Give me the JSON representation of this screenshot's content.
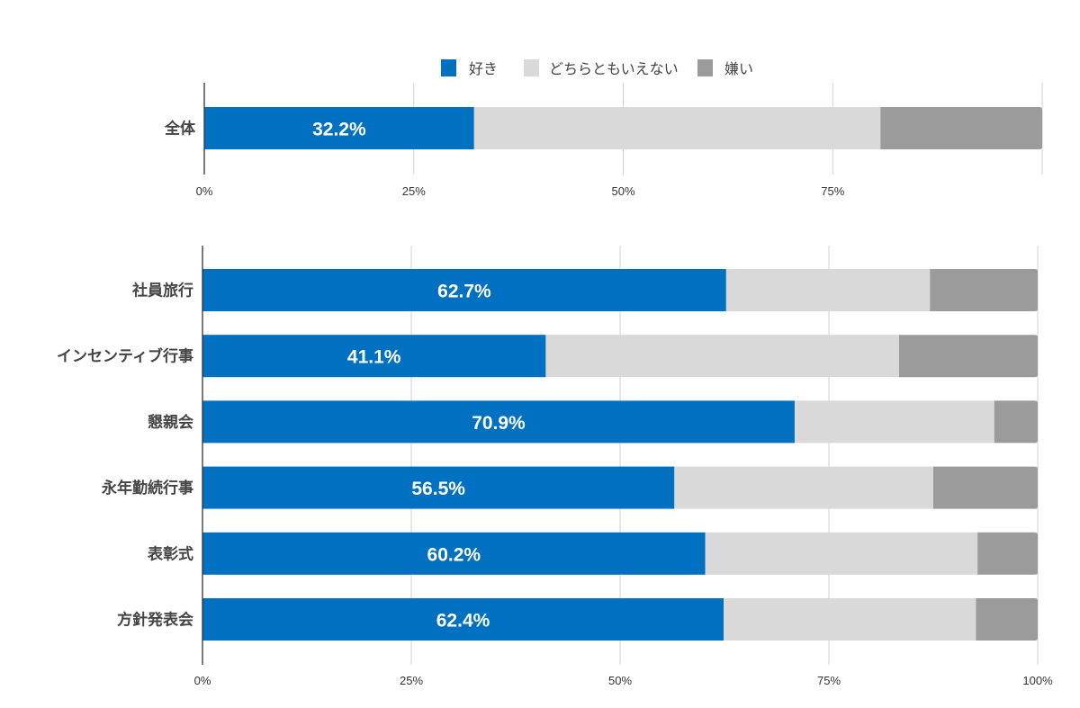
{
  "chart_data": [
    {
      "type": "bar",
      "orientation": "horizontal",
      "stacked": true,
      "categories": [
        "全体"
      ],
      "series": [
        {
          "name": "好き",
          "color": "#0070C0",
          "values": [
            32.2
          ]
        },
        {
          "name": "どちらともいえない",
          "color": "#D9D9D9",
          "values": [
            48.5
          ]
        },
        {
          "name": "嫌い",
          "color": "#9B9B9B",
          "values": [
            19.3
          ]
        }
      ],
      "data_labels": [
        "32.2%"
      ],
      "xlim": [
        0,
        100
      ],
      "x_ticks": [
        0,
        25,
        50,
        75
      ],
      "x_tick_labels": [
        "0%",
        "25%",
        "50%",
        "75%"
      ],
      "grid": true,
      "legend": "top-center"
    },
    {
      "type": "bar",
      "orientation": "horizontal",
      "stacked": true,
      "categories": [
        "社員旅行",
        "インセンティブ行事",
        "懇親会",
        "永年勤続行事",
        "表彰式",
        "方針発表会"
      ],
      "series": [
        {
          "name": "好き",
          "color": "#0070C0",
          "values": [
            62.7,
            41.1,
            70.9,
            56.5,
            60.2,
            62.4
          ]
        },
        {
          "name": "どちらともいえない",
          "color": "#D9D9D9",
          "values": [
            24.4,
            42.3,
            23.9,
            31.0,
            32.6,
            30.2
          ]
        },
        {
          "name": "嫌い",
          "color": "#9B9B9B",
          "values": [
            12.9,
            16.6,
            5.2,
            12.5,
            7.2,
            7.4
          ]
        }
      ],
      "data_labels": [
        "62.7%",
        "41.1%",
        "70.9%",
        "56.5%",
        "60.2%",
        "62.4%"
      ],
      "xlim": [
        0,
        100
      ],
      "x_ticks": [
        0,
        25,
        50,
        75,
        100
      ],
      "x_tick_labels": [
        "0%",
        "25%",
        "50%",
        "75%",
        "100%"
      ],
      "grid": true
    }
  ],
  "legend": {
    "items": [
      {
        "label": "好き",
        "color": "#0070C0"
      },
      {
        "label": "どちらともいえない",
        "color": "#D9D9D9"
      },
      {
        "label": "嫌い",
        "color": "#9B9B9B"
      }
    ]
  }
}
